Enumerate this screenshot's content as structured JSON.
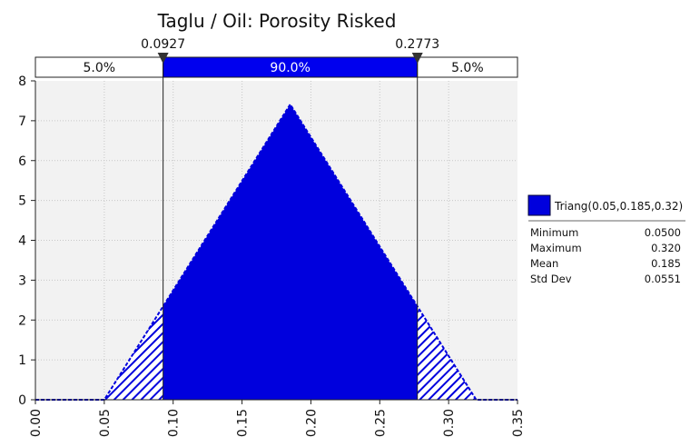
{
  "chart_data": {
    "type": "area",
    "title": "Taglu / Oil: Porosity Risked",
    "distribution": "triangular",
    "x": [
      0.0,
      0.05,
      0.185,
      0.32,
      0.35
    ],
    "y": [
      0,
      0,
      7.41,
      0,
      0
    ],
    "xlim": [
      0.0,
      0.35
    ],
    "ylim": [
      0,
      8
    ],
    "x_ticks": [
      "0.00",
      "0.05",
      "0.10",
      "0.15",
      "0.20",
      "0.25",
      "0.30",
      "0.35"
    ],
    "y_ticks": [
      "0",
      "1",
      "2",
      "3",
      "4",
      "5",
      "6",
      "7",
      "8"
    ],
    "grid": true,
    "delimiters": {
      "left_value": 0.0927,
      "left_label": "0.0927",
      "right_value": 0.2773,
      "right_label": "0.2773"
    },
    "percent_bar": {
      "left": "5.0%",
      "middle": "90.0%",
      "right": "5.0%"
    },
    "series": [
      {
        "name": "Triang(0.05,0.185,0.32)",
        "color": "#0000dd"
      }
    ],
    "legend_position": "right",
    "stats": [
      {
        "label": "Minimum",
        "value": "0.0500"
      },
      {
        "label": "Maximum",
        "value": "0.320"
      },
      {
        "label": "Mean",
        "value": "0.185"
      },
      {
        "label": "Std Dev",
        "value": "0.0551"
      }
    ]
  }
}
